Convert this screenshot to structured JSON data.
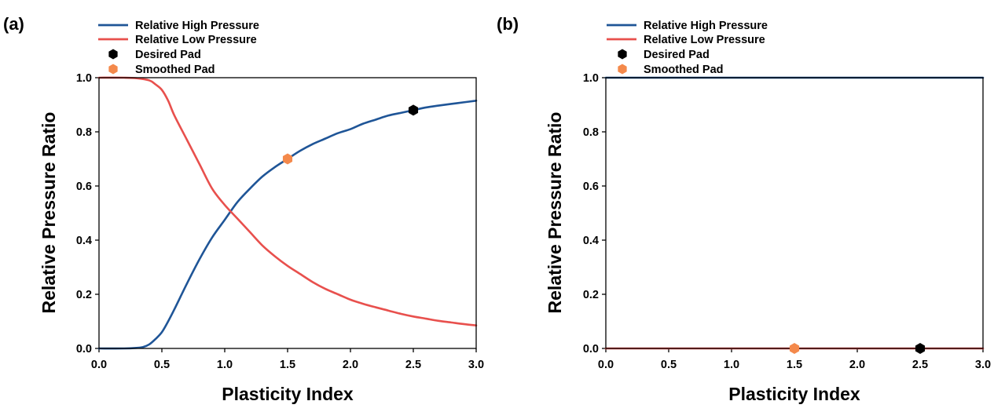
{
  "colors": {
    "high": "#1f5597",
    "low": "#e8504d",
    "desired": "#000000",
    "smoothed": "#f4894b"
  },
  "chart_data": [
    {
      "panel_label": "(a)",
      "type": "line",
      "title": "",
      "xlabel": "Plasticity Index",
      "ylabel": "Relative Pressure Ratio",
      "xlim": [
        0.0,
        3.0
      ],
      "ylim": [
        0.0,
        1.0
      ],
      "xticks": [
        "0.0",
        "0.5",
        "1.0",
        "1.5",
        "2.0",
        "2.5",
        "3.0"
      ],
      "yticks": [
        "0.0",
        "0.2",
        "0.4",
        "0.6",
        "0.8",
        "1.0"
      ],
      "grid": false,
      "legend_position": "top-left, above plot",
      "legend": [
        "Relative High Pressure",
        "Relative Low Pressure",
        "Desired Pad",
        "Smoothed Pad"
      ],
      "series": [
        {
          "name": "Relative High Pressure",
          "kind": "line",
          "color_key": "high",
          "x": [
            0.0,
            0.2,
            0.3,
            0.35,
            0.4,
            0.45,
            0.5,
            0.55,
            0.6,
            0.7,
            0.8,
            0.9,
            1.0,
            1.1,
            1.2,
            1.3,
            1.4,
            1.5,
            1.6,
            1.7,
            1.8,
            1.9,
            2.0,
            2.1,
            2.2,
            2.3,
            2.4,
            2.5,
            2.6,
            2.7,
            2.8,
            2.9,
            3.0
          ],
          "y": [
            0.0,
            0.0,
            0.002,
            0.005,
            0.015,
            0.035,
            0.06,
            0.1,
            0.145,
            0.24,
            0.33,
            0.41,
            0.475,
            0.54,
            0.59,
            0.635,
            0.67,
            0.7,
            0.73,
            0.755,
            0.775,
            0.795,
            0.81,
            0.83,
            0.845,
            0.86,
            0.87,
            0.88,
            0.89,
            0.897,
            0.903,
            0.909,
            0.915
          ]
        },
        {
          "name": "Relative Low Pressure",
          "kind": "line",
          "color_key": "low",
          "x": [
            0.0,
            0.2,
            0.3,
            0.4,
            0.45,
            0.5,
            0.55,
            0.6,
            0.7,
            0.8,
            0.9,
            1.0,
            1.1,
            1.2,
            1.3,
            1.4,
            1.5,
            1.6,
            1.7,
            1.8,
            1.9,
            2.0,
            2.1,
            2.2,
            2.3,
            2.4,
            2.5,
            2.6,
            2.7,
            2.8,
            2.9,
            3.0
          ],
          "y": [
            1.0,
            1.0,
            0.998,
            0.99,
            0.975,
            0.955,
            0.915,
            0.86,
            0.77,
            0.68,
            0.59,
            0.53,
            0.48,
            0.43,
            0.38,
            0.34,
            0.305,
            0.275,
            0.245,
            0.22,
            0.2,
            0.18,
            0.165,
            0.152,
            0.14,
            0.128,
            0.118,
            0.11,
            0.102,
            0.096,
            0.09,
            0.085
          ]
        },
        {
          "name": "Desired Pad",
          "kind": "point",
          "color_key": "desired",
          "x": [
            2.5
          ],
          "y": [
            0.88
          ]
        },
        {
          "name": "Smoothed Pad",
          "kind": "point",
          "color_key": "smoothed",
          "x": [
            1.5
          ],
          "y": [
            0.7
          ]
        }
      ]
    },
    {
      "panel_label": "(b)",
      "type": "line",
      "title": "",
      "xlabel": "Plasticity Index",
      "ylabel": "Relative Pressure Ratio",
      "xlim": [
        0.0,
        3.0
      ],
      "ylim": [
        0.0,
        1.0
      ],
      "xticks": [
        "0.0",
        "0.5",
        "1.0",
        "1.5",
        "2.0",
        "2.5",
        "3.0"
      ],
      "yticks": [
        "0.0",
        "0.2",
        "0.4",
        "0.6",
        "0.8",
        "1.0"
      ],
      "grid": false,
      "legend_position": "top-left, above plot",
      "legend": [
        "Relative High Pressure",
        "Relative Low Pressure",
        "Desired Pad",
        "Smoothed Pad"
      ],
      "series": [
        {
          "name": "Relative High Pressure",
          "kind": "line",
          "color_key": "high",
          "x": [
            0.0,
            3.0
          ],
          "y": [
            1.0,
            1.0
          ]
        },
        {
          "name": "Relative Low Pressure",
          "kind": "line",
          "color_key": "low",
          "x": [
            0.0,
            3.0
          ],
          "y": [
            0.0,
            0.0
          ]
        },
        {
          "name": "Desired Pad",
          "kind": "point",
          "color_key": "desired",
          "x": [
            2.5
          ],
          "y": [
            0.0
          ]
        },
        {
          "name": "Smoothed Pad",
          "kind": "point",
          "color_key": "smoothed",
          "x": [
            1.5
          ],
          "y": [
            0.0
          ]
        }
      ]
    }
  ]
}
